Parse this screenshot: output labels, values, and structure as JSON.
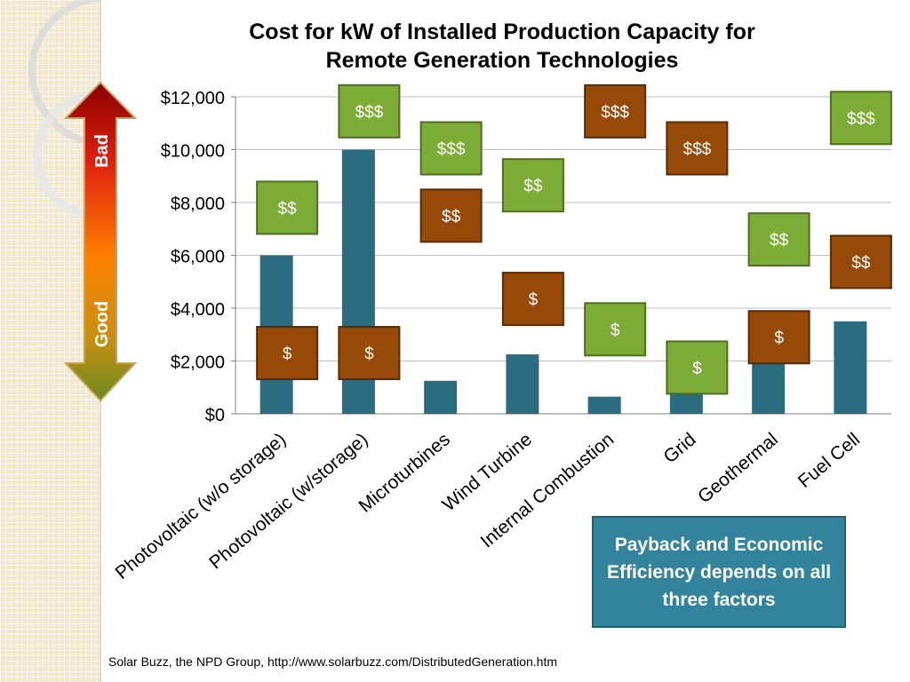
{
  "title_line1": "Cost for kW of Installed Production Capacity for",
  "title_line2": "Remote Generation Technologies",
  "arrow": {
    "top_label": "Bad",
    "bottom_label": "Good"
  },
  "callout": "Payback and Economic Efficiency depends on all three factors",
  "source": "Solar Buzz, the NPD Group, http://www.solarbuzz.com/DistributedGeneration.htm",
  "colors": {
    "bar": "#2b6c80",
    "green_box": "#7cac35",
    "brown_box": "#974a08",
    "callout": "#31849b"
  },
  "chart_data": {
    "type": "bar",
    "title": "Cost for kW of Installed Production Capacity for Remote Generation Technologies",
    "categories": [
      "Photovoltaic (w/o storage)",
      "Photovoltaic (w/storage)",
      "Microturbines",
      "Wind Turbine",
      "Internal Combustion",
      "Grid",
      "Geothermal",
      "Fuel Cell"
    ],
    "values": [
      6000,
      10000,
      1250,
      2250,
      650,
      1000,
      2200,
      3500
    ],
    "ylim": [
      0,
      12000
    ],
    "yticks": [
      0,
      2000,
      4000,
      6000,
      8000,
      10000,
      12000
    ],
    "ytick_labels": [
      "$0",
      "$2,000",
      "$4,000",
      "$6,000",
      "$8,000",
      "$10,000",
      "$12,000"
    ],
    "grid": true,
    "annotations": [
      {
        "category": 0,
        "type": "green",
        "text": "$$",
        "y_center": 7800
      },
      {
        "category": 0,
        "type": "brown",
        "text": "$",
        "y_center": 2300
      },
      {
        "category": 1,
        "type": "green",
        "text": "$$$",
        "y_center": 11450
      },
      {
        "category": 1,
        "type": "brown",
        "text": "$",
        "y_center": 2300
      },
      {
        "category": 2,
        "type": "green",
        "text": "$$$",
        "y_center": 10050
      },
      {
        "category": 2,
        "type": "brown",
        "text": "$$",
        "y_center": 7500
      },
      {
        "category": 3,
        "type": "green",
        "text": "$$",
        "y_center": 8650
      },
      {
        "category": 3,
        "type": "brown",
        "text": "$",
        "y_center": 4350
      },
      {
        "category": 4,
        "type": "green",
        "text": "$",
        "y_center": 3200
      },
      {
        "category": 4,
        "type": "brown",
        "text": "$$$",
        "y_center": 11450
      },
      {
        "category": 5,
        "type": "green",
        "text": "$",
        "y_center": 1750
      },
      {
        "category": 5,
        "type": "brown",
        "text": "$$$",
        "y_center": 10050
      },
      {
        "category": 6,
        "type": "green",
        "text": "$$",
        "y_center": 6600
      },
      {
        "category": 6,
        "type": "brown",
        "text": "$",
        "y_center": 2900
      },
      {
        "category": 7,
        "type": "green",
        "text": "$$$",
        "y_center": 11200
      },
      {
        "category": 7,
        "type": "brown",
        "text": "$$",
        "y_center": 5750
      }
    ]
  }
}
